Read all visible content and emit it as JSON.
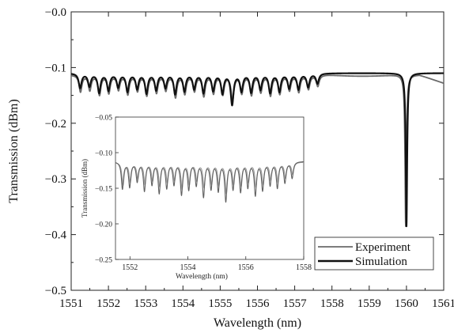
{
  "chart_data": [
    {
      "type": "line",
      "xlabel": "Wavelength (nm)",
      "ylabel": "Transmission (dBm)",
      "xlim": [
        1551,
        1561
      ],
      "ylim": [
        -0.5,
        0.0
      ],
      "xticks": [
        1551,
        1552,
        1553,
        1554,
        1555,
        1556,
        1557,
        1558,
        1559,
        1560,
        1561
      ],
      "xtick_labels": [
        "1551",
        "1552",
        "1553",
        "1554",
        "1555",
        "1556",
        "1557",
        "1558",
        "1559",
        "1560",
        "1561"
      ],
      "yticks": [
        0.0,
        -0.1,
        -0.2,
        -0.3,
        -0.4,
        -0.5
      ],
      "ytick_labels": [
        "−0.0",
        "−0.1",
        "−0.2",
        "−0.3",
        "−0.4",
        "−0.5"
      ],
      "legend_position": "bottom-right",
      "legend": [
        "Experiment",
        "Simulation"
      ],
      "series": [
        {
          "name": "Experiment",
          "color": "#6a6a6a",
          "baseline": -0.113,
          "dips_x": [
            1551.25,
            1551.5,
            1551.76,
            1552.01,
            1552.27,
            1552.52,
            1552.78,
            1553.03,
            1553.29,
            1553.54,
            1553.8,
            1554.05,
            1554.31,
            1554.56,
            1554.82,
            1555.07,
            1555.33,
            1555.58,
            1555.84,
            1556.09,
            1556.35,
            1556.6,
            1556.86,
            1557.11,
            1557.37,
            1557.62
          ],
          "dips_y": [
            -0.143,
            -0.14,
            -0.148,
            -0.145,
            -0.139,
            -0.147,
            -0.141,
            -0.149,
            -0.144,
            -0.14,
            -0.152,
            -0.146,
            -0.141,
            -0.15,
            -0.145,
            -0.147,
            -0.158,
            -0.145,
            -0.148,
            -0.143,
            -0.149,
            -0.146,
            -0.14,
            -0.143,
            -0.138,
            -0.133
          ],
          "big_dip": {
            "x": 1559.98,
            "y": -0.385
          },
          "tail_y": -0.128
        },
        {
          "name": "Simulation",
          "color": "#111111",
          "baseline": -0.11,
          "dips_x": [
            1551.24,
            1551.49,
            1551.75,
            1552.0,
            1552.26,
            1552.51,
            1552.77,
            1553.02,
            1553.28,
            1553.53,
            1553.79,
            1554.04,
            1554.3,
            1554.55,
            1554.81,
            1555.06,
            1555.32,
            1555.57,
            1555.83,
            1556.08,
            1556.34,
            1556.59,
            1556.85,
            1557.1,
            1557.36,
            1557.61
          ],
          "dips_y": [
            -0.136,
            -0.133,
            -0.144,
            -0.14,
            -0.134,
            -0.142,
            -0.137,
            -0.145,
            -0.139,
            -0.135,
            -0.146,
            -0.141,
            -0.137,
            -0.144,
            -0.14,
            -0.145,
            -0.165,
            -0.141,
            -0.143,
            -0.138,
            -0.144,
            -0.142,
            -0.136,
            -0.138,
            -0.134,
            -0.128
          ],
          "big_dip": {
            "x": 1560.0,
            "y": -0.385
          },
          "tail_y": -0.11
        }
      ]
    },
    {
      "type": "line",
      "xlabel": "Wavelength (nm)",
      "ylabel": "Transmission (dBm)",
      "xlim": [
        1551.5,
        1558
      ],
      "ylim": [
        -0.25,
        -0.05
      ],
      "xticks": [
        1552,
        1554,
        1556,
        1558
      ],
      "xtick_labels": [
        "1552",
        "1554",
        "1556",
        "1558"
      ],
      "yticks": [
        -0.05,
        -0.1,
        -0.15,
        -0.2,
        -0.25
      ],
      "ytick_labels": [
        "−0.05",
        "−0.10",
        "−0.15",
        "−0.20",
        "−0.25"
      ],
      "series": [
        {
          "name": "Experiment",
          "color": "#9a9a9a",
          "baseline": -0.113,
          "dips_x": [
            1551.76,
            1552.01,
            1552.27,
            1552.52,
            1552.78,
            1553.03,
            1553.29,
            1553.54,
            1553.8,
            1554.05,
            1554.31,
            1554.56,
            1554.82,
            1555.07,
            1555.33,
            1555.58,
            1555.84,
            1556.09,
            1556.35,
            1556.6,
            1556.86,
            1557.11,
            1557.37,
            1557.62
          ],
          "dips_y": [
            -0.145,
            -0.14,
            -0.135,
            -0.143,
            -0.138,
            -0.146,
            -0.14,
            -0.137,
            -0.149,
            -0.143,
            -0.138,
            -0.147,
            -0.142,
            -0.144,
            -0.155,
            -0.142,
            -0.145,
            -0.14,
            -0.146,
            -0.143,
            -0.137,
            -0.14,
            -0.135,
            -0.13
          ]
        },
        {
          "name": "Simulation",
          "color": "#606060",
          "baseline": -0.112,
          "dips_x": [
            1551.74,
            1551.99,
            1552.25,
            1552.5,
            1552.76,
            1553.01,
            1553.27,
            1553.52,
            1553.78,
            1554.03,
            1554.29,
            1554.54,
            1554.8,
            1555.05,
            1555.31,
            1555.56,
            1555.82,
            1556.07,
            1556.33,
            1556.58,
            1556.84,
            1557.09,
            1557.35,
            1557.6
          ],
          "dips_y": [
            -0.15,
            -0.147,
            -0.139,
            -0.152,
            -0.143,
            -0.155,
            -0.148,
            -0.143,
            -0.157,
            -0.15,
            -0.144,
            -0.16,
            -0.149,
            -0.152,
            -0.166,
            -0.149,
            -0.153,
            -0.147,
            -0.158,
            -0.151,
            -0.144,
            -0.148,
            -0.141,
            -0.135
          ]
        }
      ]
    }
  ]
}
